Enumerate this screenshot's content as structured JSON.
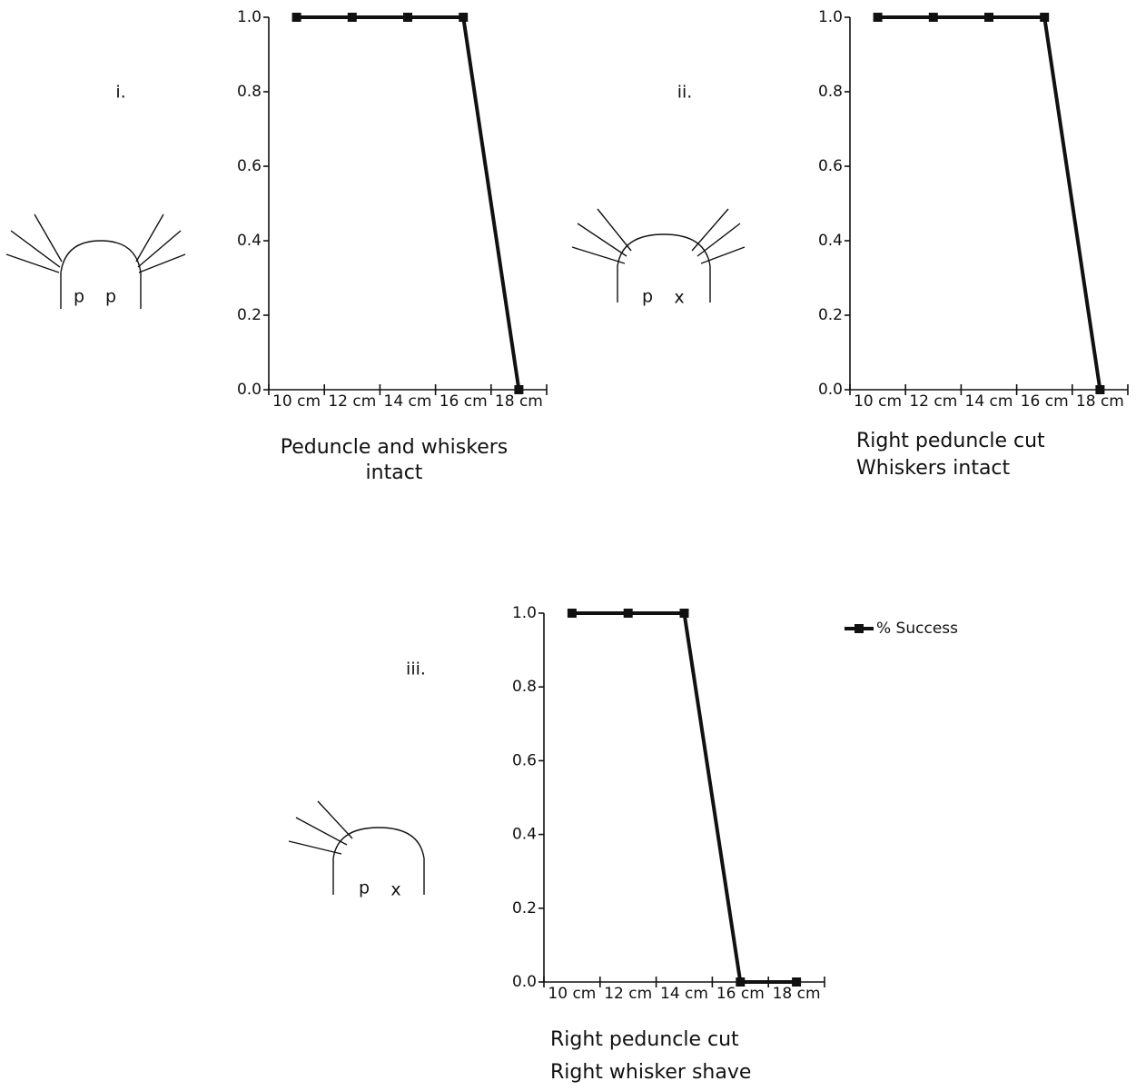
{
  "chart_data": [
    {
      "type": "line",
      "panel_label": "i.",
      "diagram_labels": [
        "p",
        "p"
      ],
      "caption": [
        "Peduncle and whiskers",
        "intact"
      ],
      "categories": [
        "10 cm",
        "12 cm",
        "14 cm",
        "16 cm",
        "18 cm"
      ],
      "values": [
        1,
        1,
        1,
        1,
        0
      ],
      "color": "#111111",
      "ylim": [
        0,
        1
      ],
      "yticks": [
        {
          "value": 0,
          "label": "0.0"
        },
        0.2,
        0.4,
        0.6,
        0.8,
        {
          "value": 1,
          "label": "1.0"
        }
      ]
    },
    {
      "type": "line",
      "panel_label": "ii.",
      "diagram_labels": [
        "p",
        "x"
      ],
      "caption": [
        "Right peduncle cut",
        "Whiskers intact"
      ],
      "categories": [
        "10 cm",
        "12 cm",
        "14 cm",
        "16 cm",
        "18 cm"
      ],
      "values": [
        1,
        1,
        1,
        1,
        0
      ],
      "color": "#111111",
      "ylim": [
        0,
        1
      ],
      "yticks": [
        {
          "value": 0,
          "label": "0.0"
        },
        0.2,
        0.4,
        0.6,
        0.8,
        {
          "value": 1,
          "label": "1.0"
        }
      ]
    },
    {
      "type": "line",
      "panel_label": "iii.",
      "diagram_labels": [
        "p",
        "x"
      ],
      "caption": [
        "Right peduncle cut",
        "Right whisker shave"
      ],
      "categories": [
        "10 cm",
        "12 cm",
        "14 cm",
        "16 cm",
        "18 cm"
      ],
      "series": [
        {
          "name": "% Success",
          "color": "#111111",
          "values": [
            1,
            1,
            1,
            0,
            0
          ]
        }
      ],
      "legend": "right",
      "ylim": [
        0,
        1
      ],
      "yticks": [
        {
          "value": 0,
          "label": "0.0"
        },
        0.2,
        0.4,
        0.6,
        0.8,
        {
          "value": 1,
          "label": "1.0"
        }
      ]
    }
  ]
}
